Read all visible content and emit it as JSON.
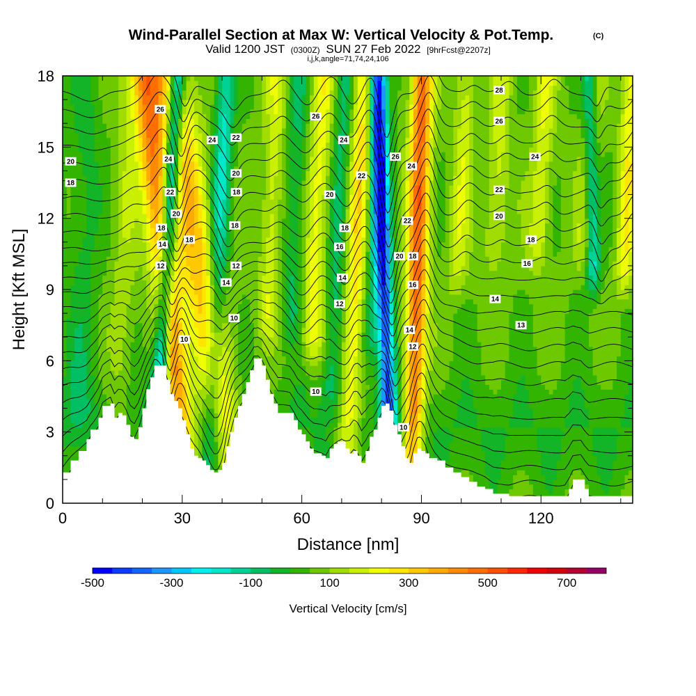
{
  "chart_data": {
    "type": "heatmap",
    "title": "Wind-Parallel Section at Max W: Vertical Velocity & Pot.Temp.",
    "title_mark": "(C)",
    "subtitle_parts": [
      "Valid 1200 JST",
      "(0300Z)",
      "SUN 27 Feb 2022",
      "[9hrFcst@2207z]"
    ],
    "subtitle2": "i,j,k,angle=71,74,24,106",
    "xlabel": "Distance [nm]",
    "ylabel": "Height [Kft MSL]",
    "xlim": [
      0,
      143
    ],
    "ylim": [
      0,
      18
    ],
    "x_ticks": [
      0,
      30,
      60,
      90,
      120
    ],
    "y_ticks": [
      0,
      3,
      6,
      9,
      12,
      15,
      18
    ],
    "x_tick_labels": [
      "0",
      "30",
      "60",
      "90",
      "120"
    ],
    "y_tick_labels": [
      "0",
      "3",
      "6",
      "9",
      "12",
      "15",
      "18"
    ],
    "colorbar": {
      "label": "Vertical Velocity [cm/s]",
      "range": [
        -500,
        800
      ],
      "step": 50,
      "tick_values": [
        -500,
        -300,
        -100,
        100,
        300,
        500,
        700
      ],
      "tick_labels": [
        "-500",
        "-300",
        "-100",
        "100",
        "300",
        "500",
        "700"
      ],
      "colors": [
        "#0000ff",
        "#0a3cff",
        "#1464ff",
        "#1e96ff",
        "#00c8ff",
        "#00f0f0",
        "#00e6c8",
        "#00d296",
        "#00be64",
        "#14b428",
        "#32b400",
        "#6ec800",
        "#a0dc00",
        "#c8f000",
        "#f0ff00",
        "#ffe600",
        "#ffc800",
        "#ffaa00",
        "#ff8c00",
        "#ff6e00",
        "#ff5000",
        "#ff2800",
        "#f00000",
        "#d2000a",
        "#b40032",
        "#960064",
        "#78008c",
        "#5a00a0"
      ]
    },
    "terrain": [
      [
        0,
        1.3
      ],
      [
        2,
        1.8
      ],
      [
        4,
        2.2
      ],
      [
        6,
        2.7
      ],
      [
        7,
        3.1
      ],
      [
        9,
        3.6
      ],
      [
        10,
        4.1
      ],
      [
        12,
        4.2
      ],
      [
        13,
        3.6
      ],
      [
        14,
        3.8
      ],
      [
        15,
        3.7
      ],
      [
        16,
        3.3
      ],
      [
        17,
        2.8
      ],
      [
        18,
        2.7
      ],
      [
        19,
        3.2
      ],
      [
        20,
        4.0
      ],
      [
        21,
        4.8
      ],
      [
        22,
        5.3
      ],
      [
        23,
        5.8
      ],
      [
        25,
        5.8
      ],
      [
        26,
        5.2
      ],
      [
        27,
        4.6
      ],
      [
        28,
        4.3
      ],
      [
        29,
        4.0
      ],
      [
        30,
        3.5
      ],
      [
        31,
        2.9
      ],
      [
        32,
        2.3
      ],
      [
        33,
        2.0
      ],
      [
        34,
        1.9
      ],
      [
        35,
        1.8
      ],
      [
        36,
        1.6
      ],
      [
        37,
        1.4
      ],
      [
        38,
        1.3
      ],
      [
        39,
        1.4
      ],
      [
        40,
        1.7
      ],
      [
        41,
        2.4
      ],
      [
        42,
        3.0
      ],
      [
        43,
        3.6
      ],
      [
        44,
        4.1
      ],
      [
        45,
        4.6
      ],
      [
        46,
        5.1
      ],
      [
        47,
        5.6
      ],
      [
        48,
        6.1
      ],
      [
        49,
        6.1
      ],
      [
        50,
        5.8
      ],
      [
        51,
        5.2
      ],
      [
        52,
        4.6
      ],
      [
        53,
        4.2
      ],
      [
        54,
        3.8
      ],
      [
        57,
        3.8
      ],
      [
        58,
        3.5
      ],
      [
        59,
        3.1
      ],
      [
        60,
        2.9
      ],
      [
        61,
        2.6
      ],
      [
        62,
        2.3
      ],
      [
        63,
        2.1
      ],
      [
        65,
        2.0
      ],
      [
        66,
        1.9
      ],
      [
        67,
        2.3
      ],
      [
        68,
        2.5
      ],
      [
        69,
        2.6
      ],
      [
        70,
        2.6
      ],
      [
        71,
        2.3
      ],
      [
        72,
        2.1
      ],
      [
        73,
        2.2
      ],
      [
        74,
        2.0
      ],
      [
        75,
        1.7
      ],
      [
        76,
        2.2
      ],
      [
        77,
        2.8
      ],
      [
        78,
        3.1
      ],
      [
        79,
        3.6
      ],
      [
        80,
        4.1
      ],
      [
        81,
        4.2
      ],
      [
        82,
        3.9
      ],
      [
        83,
        3.3
      ],
      [
        84,
        2.9
      ],
      [
        85,
        2.4
      ],
      [
        86,
        1.9
      ],
      [
        87,
        1.7
      ],
      [
        88,
        2.1
      ],
      [
        89,
        2.3
      ],
      [
        90,
        2.2
      ],
      [
        91,
        2.1
      ],
      [
        92,
        1.9
      ],
      [
        94,
        1.8
      ],
      [
        96,
        1.5
      ],
      [
        98,
        1.3
      ],
      [
        100,
        1.1
      ],
      [
        102,
        0.9
      ],
      [
        104,
        0.7
      ],
      [
        106,
        0.6
      ],
      [
        108,
        0.4
      ],
      [
        110,
        0.4
      ],
      [
        112,
        0.3
      ],
      [
        114,
        0.3
      ],
      [
        120,
        0.3
      ],
      [
        126,
        0.3
      ],
      [
        127,
        0.6
      ],
      [
        128,
        1.0
      ],
      [
        130,
        1.0
      ],
      [
        131,
        0.6
      ],
      [
        132,
        0.3
      ],
      [
        143,
        0.3
      ]
    ],
    "w_features": [
      {
        "kind": "updraft",
        "x0": 31.5,
        "slope": -0.6,
        "amp": 380,
        "width": 3.5,
        "hmin": 0
      },
      {
        "kind": "updraft",
        "x0": 42.5,
        "slope": -0.85,
        "amp": 270,
        "width": 5.0,
        "hmin": 0
      },
      {
        "kind": "downdraft",
        "x0": 22.8,
        "slope": 0.33,
        "amp": -420,
        "width": 2.1,
        "hmin": 0
      },
      {
        "kind": "downdraft",
        "x0": 36.5,
        "slope": 0.25,
        "amp": -220,
        "width": 2.4,
        "hmin": 0
      },
      {
        "kind": "downdraft",
        "x0": 82.5,
        "slope": -0.2,
        "amp": -470,
        "width": 2.0,
        "hmin": 0
      },
      {
        "kind": "updraft",
        "x0": 87.5,
        "slope": 0.15,
        "amp": 420,
        "width": 2.6,
        "hmin": 0
      },
      {
        "kind": "updraft",
        "x0": 71.0,
        "slope": 0.25,
        "amp": 230,
        "width": 3.0,
        "hmin": 0
      },
      {
        "kind": "downdraft",
        "x0": 66.5,
        "slope": 0.25,
        "amp": -150,
        "width": 2.8,
        "hmin": 3
      },
      {
        "kind": "updraft",
        "x0": 61.0,
        "slope": 0.25,
        "amp": 170,
        "width": 3.0,
        "hmin": 5
      },
      {
        "kind": "downdraft",
        "x0": 56.0,
        "slope": 0.2,
        "amp": -120,
        "width": 2.5,
        "hmin": 6
      },
      {
        "kind": "updraft",
        "x0": 50.0,
        "slope": 0.2,
        "amp": 130,
        "width": 2.5,
        "hmin": 6
      },
      {
        "kind": "downdraft",
        "x0": 75.5,
        "slope": 0.25,
        "amp": -150,
        "width": 2.5,
        "hmin": 5
      },
      {
        "kind": "updraft",
        "x0": 96.0,
        "slope": 0.3,
        "amp": 120,
        "width": 2.5,
        "hmin": 8
      },
      {
        "kind": "updraft",
        "x0": 105.0,
        "slope": 0.3,
        "amp": 120,
        "width": 2.5,
        "hmin": 9
      },
      {
        "kind": "updraft",
        "x0": 116.0,
        "slope": 0.3,
        "amp": 140,
        "width": 2.5,
        "hmin": 9
      },
      {
        "kind": "updraft",
        "x0": 128.0,
        "slope": 0.3,
        "amp": 120,
        "width": 2.5,
        "hmin": 9
      },
      {
        "kind": "downdraft",
        "x0": 134.0,
        "slope": -0.1,
        "amp": -250,
        "width": 1.8,
        "hmin": 8
      },
      {
        "kind": "updraft",
        "x0": 139.0,
        "slope": 0.2,
        "amp": 180,
        "width": 2.2,
        "hmin": 8
      },
      {
        "kind": "downdraft",
        "x0": 4.0,
        "slope": 0.1,
        "amp": -80,
        "width": 4.0,
        "hmin": 2
      },
      {
        "kind": "updraft",
        "x0": 14.0,
        "slope": 0.15,
        "amp": 70,
        "width": 3.0,
        "hmin": 2
      }
    ],
    "theta_levels": {
      "start": 6,
      "end": 30,
      "step": 1
    },
    "theta_labels": [
      {
        "x": 2,
        "y": 14.4,
        "text": "20"
      },
      {
        "x": 2,
        "y": 13.5,
        "text": "18"
      },
      {
        "x": 24.5,
        "y": 16.6,
        "text": "26"
      },
      {
        "x": 26.5,
        "y": 14.5,
        "text": "24"
      },
      {
        "x": 27,
        "y": 13.1,
        "text": "22"
      },
      {
        "x": 24.8,
        "y": 11.6,
        "text": "18"
      },
      {
        "x": 25,
        "y": 10.9,
        "text": "14"
      },
      {
        "x": 24.6,
        "y": 10.0,
        "text": "12"
      },
      {
        "x": 28.5,
        "y": 12.2,
        "text": "20"
      },
      {
        "x": 30.5,
        "y": 6.9,
        "text": "10"
      },
      {
        "x": 31.8,
        "y": 11.1,
        "text": "18"
      },
      {
        "x": 37.5,
        "y": 15.3,
        "text": "24"
      },
      {
        "x": 43.5,
        "y": 15.4,
        "text": "22"
      },
      {
        "x": 43.5,
        "y": 13.9,
        "text": "20"
      },
      {
        "x": 43.6,
        "y": 13.1,
        "text": "18"
      },
      {
        "x": 43.2,
        "y": 11.7,
        "text": "18"
      },
      {
        "x": 43.5,
        "y": 10.0,
        "text": "12"
      },
      {
        "x": 41.0,
        "y": 9.3,
        "text": "14"
      },
      {
        "x": 43.0,
        "y": 7.8,
        "text": "10"
      },
      {
        "x": 63.5,
        "y": 16.3,
        "text": "26"
      },
      {
        "x": 70.5,
        "y": 15.3,
        "text": "24"
      },
      {
        "x": 75.0,
        "y": 13.8,
        "text": "22"
      },
      {
        "x": 67.0,
        "y": 13.0,
        "text": "20"
      },
      {
        "x": 70.8,
        "y": 11.6,
        "text": "18"
      },
      {
        "x": 69.5,
        "y": 10.8,
        "text": "16"
      },
      {
        "x": 70.2,
        "y": 9.5,
        "text": "14"
      },
      {
        "x": 69.5,
        "y": 8.4,
        "text": "12"
      },
      {
        "x": 63.5,
        "y": 4.7,
        "text": "10"
      },
      {
        "x": 83.5,
        "y": 14.6,
        "text": "26"
      },
      {
        "x": 87.5,
        "y": 14.2,
        "text": "24"
      },
      {
        "x": 86.5,
        "y": 11.9,
        "text": "22"
      },
      {
        "x": 84.5,
        "y": 10.4,
        "text": "20"
      },
      {
        "x": 87.8,
        "y": 10.4,
        "text": "18"
      },
      {
        "x": 87.8,
        "y": 9.2,
        "text": "16"
      },
      {
        "x": 87.0,
        "y": 7.3,
        "text": "14"
      },
      {
        "x": 87.8,
        "y": 6.6,
        "text": "12"
      },
      {
        "x": 85.5,
        "y": 3.2,
        "text": "10"
      },
      {
        "x": 109.5,
        "y": 17.4,
        "text": "28"
      },
      {
        "x": 109.5,
        "y": 16.1,
        "text": "26"
      },
      {
        "x": 118.5,
        "y": 14.6,
        "text": "24"
      },
      {
        "x": 109.5,
        "y": 13.2,
        "text": "22"
      },
      {
        "x": 109.5,
        "y": 12.1,
        "text": "20"
      },
      {
        "x": 117.5,
        "y": 11.1,
        "text": "18"
      },
      {
        "x": 116.5,
        "y": 10.1,
        "text": "16"
      },
      {
        "x": 108.5,
        "y": 8.6,
        "text": "14"
      },
      {
        "x": 115.0,
        "y": 7.5,
        "text": "13"
      }
    ]
  }
}
